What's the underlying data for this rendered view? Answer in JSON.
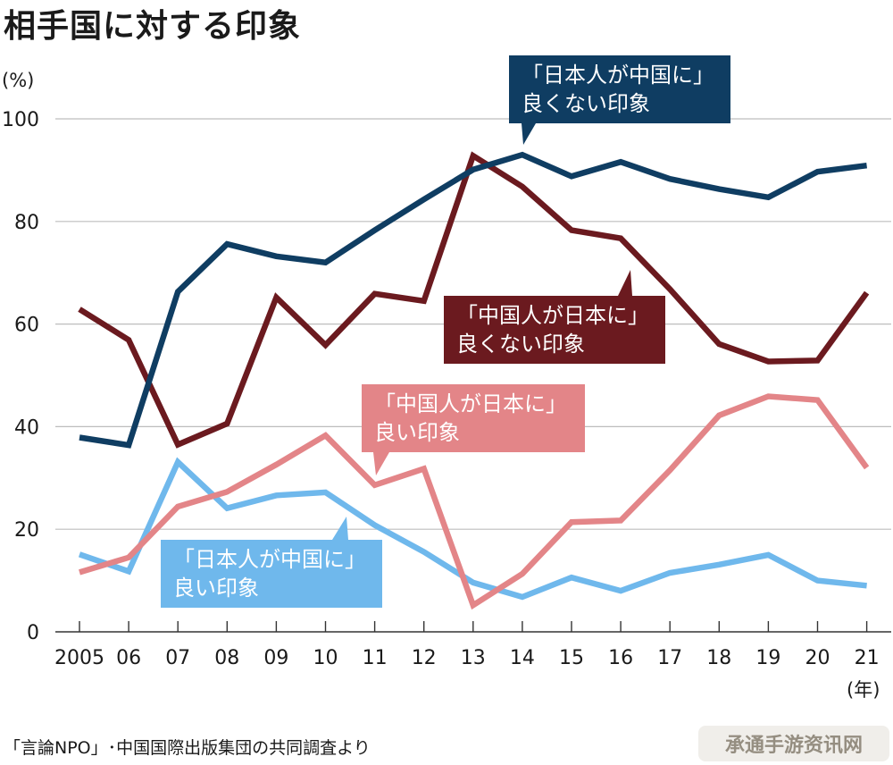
{
  "title": "相手国に対する印象",
  "ylabel": "(%)",
  "xlabel": "(年)",
  "source": "「言論NPO」･中国国際出版集団の共同調査より",
  "watermark": "承通手游资讯网",
  "chart_data": {
    "type": "line",
    "title": "相手国に対する印象",
    "ylabel": "(%)",
    "xlabel": "(年)",
    "ylim": [
      0,
      100
    ],
    "yticks": [
      0,
      20,
      40,
      60,
      80,
      100
    ],
    "grid": true,
    "categories": [
      "2005",
      "06",
      "07",
      "08",
      "09",
      "10",
      "11",
      "12",
      "13",
      "14",
      "15",
      "16",
      "17",
      "18",
      "19",
      "20",
      "21"
    ],
    "series": [
      {
        "name": "日本人が中国に良くない印象",
        "label_line1": "「日本人が中国に」",
        "label_line2": "良くない印象",
        "color": "#0f3d62",
        "values": [
          37.9,
          36.4,
          66.3,
          75.6,
          73.2,
          72.0,
          78.3,
          84.3,
          90.1,
          93.0,
          88.8,
          91.6,
          88.3,
          86.3,
          84.7,
          89.7,
          90.9
        ]
      },
      {
        "name": "中国人が日本に良くない印象",
        "label_line1": "「中国人が日本に」",
        "label_line2": "良くない印象",
        "color": "#6b1a1f",
        "values": [
          62.9,
          56.9,
          36.5,
          40.6,
          65.2,
          55.9,
          65.9,
          64.5,
          92.8,
          86.8,
          78.3,
          76.7,
          66.8,
          56.1,
          52.7,
          52.9,
          66.1
        ]
      },
      {
        "name": "中国人が日本に良い印象",
        "label_line1": "「中国人が日本に」",
        "label_line2": "良い印象",
        "color": "#e38588",
        "values": [
          11.6,
          14.5,
          24.4,
          27.3,
          32.6,
          38.3,
          28.6,
          31.8,
          5.2,
          11.3,
          21.4,
          21.7,
          31.5,
          42.2,
          45.9,
          45.2,
          32.0
        ]
      },
      {
        "name": "日本人が中国に良い印象",
        "label_line1": "「日本人が中国に」",
        "label_line2": "良い印象",
        "color": "#6fb8ec",
        "values": [
          15.1,
          11.8,
          33.1,
          24.1,
          26.6,
          27.2,
          20.8,
          15.6,
          9.6,
          6.8,
          10.6,
          8.0,
          11.5,
          13.1,
          15.0,
          10.0,
          9.0
        ]
      }
    ]
  }
}
